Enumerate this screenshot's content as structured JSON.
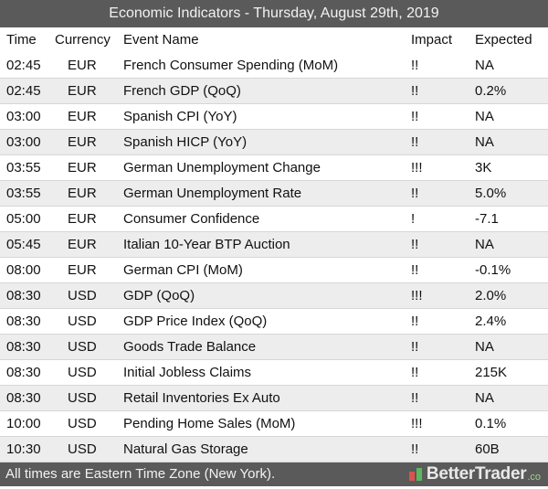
{
  "title": "Economic Indicators - Thursday, August 29th, 2019",
  "columns": {
    "time": "Time",
    "currency": "Currency",
    "event": "Event Name",
    "impact": "Impact",
    "expected": "Expected"
  },
  "rows": [
    {
      "time": "02:45",
      "currency": "EUR",
      "event": "French Consumer Spending (MoM)",
      "impact": "!!",
      "expected": "NA"
    },
    {
      "time": "02:45",
      "currency": "EUR",
      "event": "French GDP (QoQ)",
      "impact": "!!",
      "expected": "0.2%"
    },
    {
      "time": "03:00",
      "currency": "EUR",
      "event": "Spanish CPI (YoY)",
      "impact": "!!",
      "expected": "NA"
    },
    {
      "time": "03:00",
      "currency": "EUR",
      "event": "Spanish HICP (YoY)",
      "impact": "!!",
      "expected": "NA"
    },
    {
      "time": "03:55",
      "currency": "EUR",
      "event": "German Unemployment Change",
      "impact": "!!!",
      "expected": "3K"
    },
    {
      "time": "03:55",
      "currency": "EUR",
      "event": "German Unemployment Rate",
      "impact": "!!",
      "expected": "5.0%"
    },
    {
      "time": "05:00",
      "currency": "EUR",
      "event": "Consumer Confidence",
      "impact": "!",
      "expected": "-7.1"
    },
    {
      "time": "05:45",
      "currency": "EUR",
      "event": "Italian 10-Year BTP Auction",
      "impact": "!!",
      "expected": "NA"
    },
    {
      "time": "08:00",
      "currency": "EUR",
      "event": "German CPI (MoM)",
      "impact": "!!",
      "expected": "-0.1%"
    },
    {
      "time": "08:30",
      "currency": "USD",
      "event": "GDP (QoQ)",
      "impact": "!!!",
      "expected": "2.0%"
    },
    {
      "time": "08:30",
      "currency": "USD",
      "event": "GDP Price Index (QoQ)",
      "impact": "!!",
      "expected": "2.4%"
    },
    {
      "time": "08:30",
      "currency": "USD",
      "event": "Goods Trade Balance",
      "impact": "!!",
      "expected": "NA"
    },
    {
      "time": "08:30",
      "currency": "USD",
      "event": "Initial Jobless Claims",
      "impact": "!!",
      "expected": "215K"
    },
    {
      "time": "08:30",
      "currency": "USD",
      "event": "Retail Inventories Ex Auto",
      "impact": "!!",
      "expected": "NA"
    },
    {
      "time": "10:00",
      "currency": "USD",
      "event": "Pending Home Sales (MoM)",
      "impact": "!!!",
      "expected": "0.1%"
    },
    {
      "time": "10:30",
      "currency": "USD",
      "event": "Natural Gas Storage",
      "impact": "!!",
      "expected": "60B"
    }
  ],
  "footer": {
    "note": "All times are Eastern Time Zone (New York).",
    "brand": "BetterTrader",
    "brand_suffix": ".co",
    "brand_icon": "bettertrader-logo-icon",
    "colors": {
      "header_bg": "#5a5a5a",
      "stripe": "#ededed",
      "brand_accent": "#9fd18a",
      "logo_red": "#d9534f",
      "logo_green": "#5cb85c"
    }
  }
}
